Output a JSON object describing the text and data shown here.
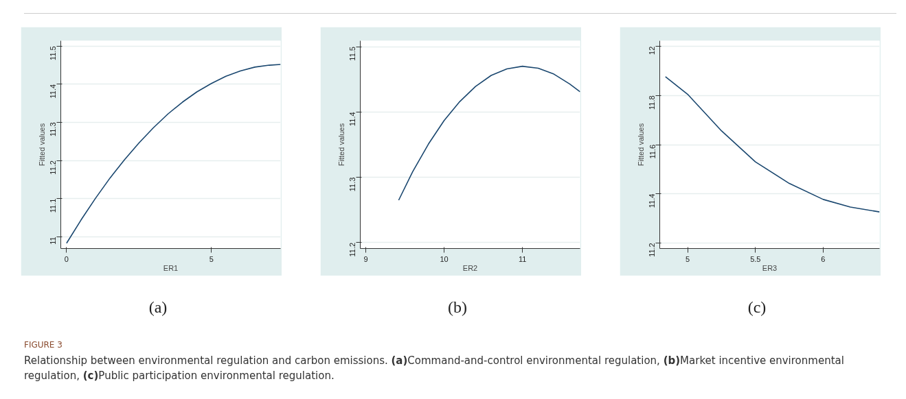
{
  "chart_data": [
    {
      "type": "line",
      "xlabel": "ER1",
      "ylabel": "Fitted values",
      "annotations": [
        "(a)"
      ],
      "color": "#1a476f",
      "grid": "y",
      "marker": "none",
      "line_style": "solid",
      "x": [
        0,
        0.5,
        1,
        1.5,
        2,
        2.5,
        3,
        3.5,
        4,
        4.5,
        5,
        5.5,
        6,
        6.5,
        7,
        7.39
      ],
      "values": [
        10.983,
        11.044,
        11.101,
        11.154,
        11.202,
        11.246,
        11.286,
        11.322,
        11.353,
        11.38,
        11.402,
        11.421,
        11.435,
        11.445,
        11.45,
        11.452
      ],
      "xlim": [
        -0.2,
        7.39
      ],
      "ylim": [
        10.969,
        11.514
      ],
      "xticks": [
        0,
        5
      ],
      "yticks": [
        11,
        11.1,
        11.2,
        11.3,
        11.4,
        11.5
      ]
    },
    {
      "type": "line",
      "xlabel": "ER2",
      "ylabel": "Fitted values",
      "annotations": [
        "(b)"
      ],
      "color": "#1a476f",
      "grid": "y",
      "marker": "none",
      "line_style": "solid",
      "x": [
        9.42,
        9.6,
        9.8,
        10,
        10.2,
        10.4,
        10.6,
        10.8,
        11,
        11.2,
        11.4,
        11.6,
        11.734
      ],
      "values": [
        11.265,
        11.309,
        11.351,
        11.387,
        11.416,
        11.439,
        11.456,
        11.466,
        11.47,
        11.467,
        11.458,
        11.443,
        11.431
      ],
      "xlim": [
        8.93,
        11.734
      ],
      "ylim": [
        11.191,
        11.509
      ],
      "xticks": [
        9,
        10,
        11
      ],
      "yticks": [
        11.2,
        11.3,
        11.4,
        11.5
      ]
    },
    {
      "type": "line",
      "xlabel": "ER3",
      "ylabel": "Fitted values",
      "annotations": [
        "(c)"
      ],
      "color": "#1a476f",
      "grid": "y",
      "marker": "none",
      "line_style": "solid",
      "x": [
        4.836,
        5,
        5.25,
        5.5,
        5.75,
        6,
        6.2,
        6.416
      ],
      "values": [
        11.877,
        11.805,
        11.656,
        11.53,
        11.442,
        11.377,
        11.346,
        11.326
      ],
      "xlim": [
        4.794,
        6.416
      ],
      "ylim": [
        11.177,
        12.023
      ],
      "xticks": [
        5,
        5.5,
        6
      ],
      "yticks": [
        11.2,
        11.4,
        11.6,
        11.8,
        12
      ]
    },
    {
      "type": "other",
      "annotations": [
        "FIGURE 3",
        "Relationship between environmental regulation and carbon emissions. (a)Command-and-control environmental regulation, (b)Market incentive environmental regulation, (c)Public participation environmental regulation."
      ]
    }
  ]
}
